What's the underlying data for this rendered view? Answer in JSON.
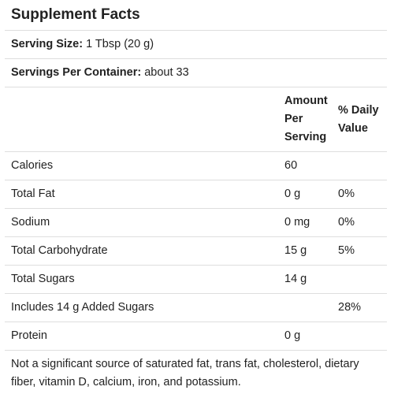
{
  "title": "Supplement Facts",
  "serving_size": {
    "label": "Serving Size:",
    "value": "1 Tbsp (20 g)"
  },
  "servings_per_container": {
    "label": "Servings Per Container:",
    "value": "about 33"
  },
  "columns": {
    "amount": "Amount Per Serving",
    "daily_value": "% Daily Value"
  },
  "rows": [
    {
      "name": "Calories",
      "amount": "60",
      "dv": ""
    },
    {
      "name": "Total Fat",
      "amount": "0 g",
      "dv": "0%"
    },
    {
      "name": "Sodium",
      "amount": "0 mg",
      "dv": "0%"
    },
    {
      "name": "Total Carbohydrate",
      "amount": "15 g",
      "dv": "5%"
    },
    {
      "name": "Total Sugars",
      "amount": "14 g",
      "dv": ""
    },
    {
      "name": "Includes 14 g Added Sugars",
      "amount": "",
      "dv": "28%"
    },
    {
      "name": "Protein",
      "amount": "0 g",
      "dv": ""
    }
  ],
  "footnote": "Not a significant source of saturated fat, trans fat, cholesterol, dietary fiber, vitamin D, calcium, iron, and potassium."
}
